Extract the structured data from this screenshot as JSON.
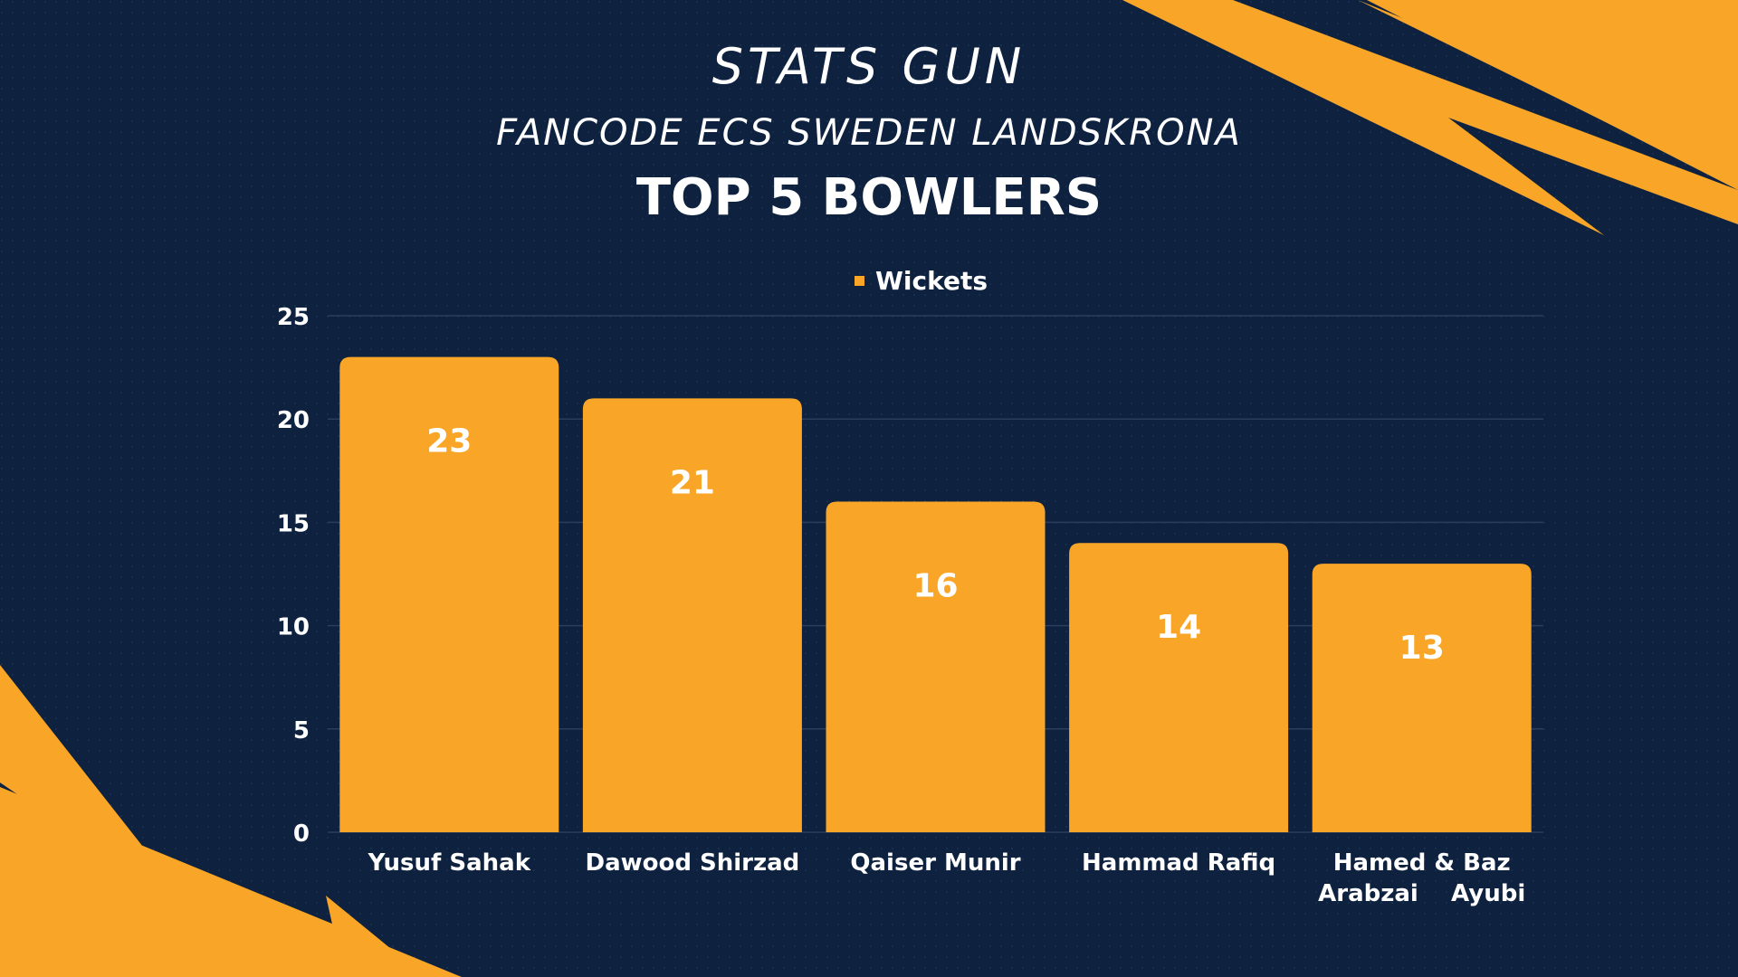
{
  "brand": "STATS GUN",
  "subtitle": "FANCODE ECS SWEDEN LANDSKRONA",
  "colors": {
    "background": "#0e2240",
    "accent": "#f9a628",
    "text": "#ffffff",
    "grid": "#2a3d5c"
  },
  "chart_data": {
    "type": "bar",
    "title": "TOP 5 BOWLERS",
    "legend": "Wickets",
    "legend_position": "top-center",
    "grid": true,
    "categories": [
      [
        "Yusuf Sahak"
      ],
      [
        "Dawood Shirzad"
      ],
      [
        "Qaiser Munir"
      ],
      [
        "Hammad Rafiq"
      ],
      [
        "Hamed & Baz",
        "Arabzai    Ayubi"
      ]
    ],
    "series": [
      {
        "name": "Wickets",
        "values": [
          23,
          21,
          16,
          14,
          13
        ]
      }
    ],
    "ylim": [
      0,
      25
    ],
    "yticks": [
      0,
      5,
      10,
      15,
      20,
      25
    ]
  }
}
